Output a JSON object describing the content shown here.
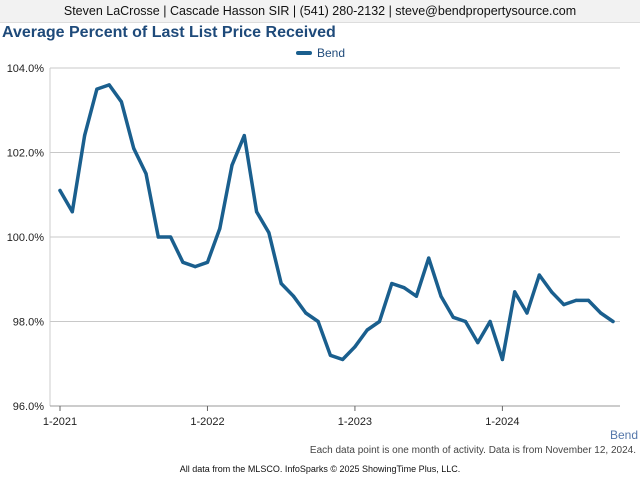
{
  "header": {
    "contact": "Steven LaCrosse | Cascade Hasson SIR | (541) 280-2132 | steve@bendpropertysource.com"
  },
  "footer": {
    "note": "Each data point is one month of activity. Data is from November 12, 2024.",
    "credit": "All data from the MLSCO. InfoSparks © 2025 ShowingTime Plus, LLC.",
    "series_label": "Bend"
  },
  "colors": {
    "series": "#1a5f8e",
    "title": "#1e4a7a",
    "grid": "#c8c8c8"
  },
  "chart_data": {
    "type": "line",
    "title": "Average Percent of Last List Price Received",
    "legend": "top-center",
    "grid": true,
    "xlabel": "",
    "ylabel": "",
    "ylim": [
      96.0,
      104.0
    ],
    "yticks": [
      96.0,
      98.0,
      100.0,
      102.0,
      104.0
    ],
    "ytick_labels": [
      "96.0%",
      "98.0%",
      "100.0%",
      "102.0%",
      "104.0%"
    ],
    "xticks": [
      "1-2021",
      "1-2022",
      "1-2023",
      "1-2024"
    ],
    "x": [
      "1-2021",
      "2-2021",
      "3-2021",
      "4-2021",
      "5-2021",
      "6-2021",
      "7-2021",
      "8-2021",
      "9-2021",
      "10-2021",
      "11-2021",
      "12-2021",
      "1-2022",
      "2-2022",
      "3-2022",
      "4-2022",
      "5-2022",
      "6-2022",
      "7-2022",
      "8-2022",
      "9-2022",
      "10-2022",
      "11-2022",
      "12-2022",
      "1-2023",
      "2-2023",
      "3-2023",
      "4-2023",
      "5-2023",
      "6-2023",
      "7-2023",
      "8-2023",
      "9-2023",
      "10-2023",
      "11-2023",
      "12-2023",
      "1-2024",
      "2-2024",
      "3-2024",
      "4-2024",
      "5-2024",
      "6-2024",
      "7-2024",
      "8-2024",
      "9-2024",
      "10-2024"
    ],
    "series": [
      {
        "name": "Bend",
        "values": [
          101.1,
          100.6,
          102.4,
          103.5,
          103.6,
          103.2,
          102.1,
          101.5,
          100.0,
          100.0,
          99.4,
          99.3,
          99.4,
          100.2,
          101.7,
          102.4,
          100.6,
          100.1,
          98.9,
          98.6,
          98.2,
          98.0,
          97.2,
          97.1,
          97.4,
          97.8,
          98.0,
          98.9,
          98.8,
          98.6,
          99.5,
          98.6,
          98.1,
          98.0,
          97.5,
          98.0,
          97.1,
          98.7,
          98.2,
          99.1,
          98.7,
          98.4,
          98.5,
          98.5,
          98.2,
          98.0
        ]
      }
    ]
  }
}
